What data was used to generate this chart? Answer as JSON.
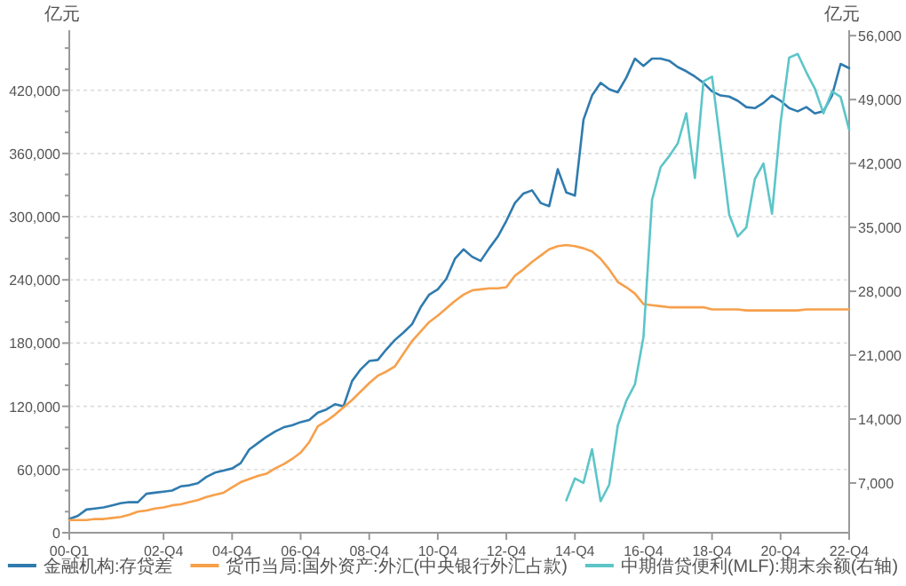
{
  "chart_data": {
    "type": "line",
    "ylabel": "亿元",
    "y2label": "亿元",
    "legend": "bottom",
    "grid": "y",
    "categories": [
      "00-Q1",
      null,
      null,
      null,
      null,
      null,
      null,
      null,
      null,
      null,
      null,
      "02-Q4",
      null,
      null,
      null,
      null,
      null,
      null,
      null,
      "04-Q4",
      null,
      null,
      null,
      null,
      null,
      null,
      null,
      "06-Q4",
      null,
      null,
      null,
      null,
      null,
      null,
      null,
      "08-Q4",
      null,
      null,
      null,
      null,
      null,
      null,
      null,
      "10-Q4",
      null,
      null,
      null,
      null,
      null,
      null,
      null,
      "12-Q4",
      null,
      null,
      null,
      null,
      null,
      null,
      null,
      "14-Q4",
      null,
      null,
      null,
      null,
      null,
      null,
      null,
      "16-Q4",
      null,
      null,
      null,
      null,
      null,
      null,
      null,
      "18-Q4",
      null,
      null,
      null,
      null,
      null,
      null,
      null,
      "20-Q4",
      null,
      null,
      null,
      null,
      null,
      null,
      null,
      "22-Q4"
    ],
    "ylim": [
      0,
      477000
    ],
    "yticks": [
      0,
      {
        "value": 20000,
        "label": null
      },
      {
        "value": 40000,
        "label": null
      },
      {
        "value": 60000,
        "label": "60,000"
      },
      {
        "value": 80000,
        "label": null
      },
      {
        "value": 100000,
        "label": null
      },
      {
        "value": 120000,
        "label": "120,000"
      },
      {
        "value": 140000,
        "label": null
      },
      {
        "value": 160000,
        "label": null
      },
      {
        "value": 180000,
        "label": "180,000"
      },
      {
        "value": 200000,
        "label": null
      },
      {
        "value": 220000,
        "label": null
      },
      {
        "value": 240000,
        "label": "240,000"
      },
      {
        "value": 260000,
        "label": null
      },
      {
        "value": 280000,
        "label": null
      },
      {
        "value": 300000,
        "label": "300,000"
      },
      {
        "value": 320000,
        "label": null
      },
      {
        "value": 340000,
        "label": null
      },
      {
        "value": 360000,
        "label": "360,000"
      },
      {
        "value": 380000,
        "label": null
      },
      {
        "value": 400000,
        "label": null
      },
      {
        "value": 420000,
        "label": "420,000"
      },
      {
        "value": 440000,
        "label": null
      },
      {
        "value": 460000,
        "label": null
      }
    ],
    "y2lim": [
      1550,
      56600
    ],
    "y2ticks": [
      {
        "value": 7000,
        "label": "7,000"
      },
      {
        "value": 14000,
        "label": "14,000"
      },
      {
        "value": 21000,
        "label": "21,000"
      },
      {
        "value": 28000,
        "label": "28,000"
      },
      {
        "value": 35000,
        "label": "35,000"
      },
      {
        "value": 42000,
        "label": "42,000"
      },
      {
        "value": 49000,
        "label": "49,000"
      },
      {
        "value": 56000,
        "label": "56,000"
      }
    ],
    "series": [
      {
        "name": "金融机构:存贷差",
        "color": "#2f7bae",
        "values": [
          13000,
          16000,
          22000,
          23000,
          24000,
          26000,
          28000,
          29000,
          29000,
          37000,
          38000,
          39000,
          40000,
          44000,
          45000,
          47000,
          53000,
          57000,
          59000,
          61000,
          66000,
          79000,
          85000,
          91000,
          96000,
          100000,
          102000,
          105000,
          107000,
          114000,
          117000,
          122000,
          120000,
          144000,
          155000,
          163000,
          164000,
          174000,
          183000,
          190000,
          198000,
          214000,
          226000,
          231000,
          241000,
          260000,
          269000,
          262000,
          258000,
          270000,
          281000,
          296000,
          313000,
          322000,
          325000,
          313000,
          310000,
          345000,
          323000,
          320000,
          392000,
          415000,
          427000,
          421000,
          418000,
          432000,
          450000,
          443000,
          450000,
          450000,
          448000,
          442000,
          438000,
          433000,
          427000,
          419000,
          415000,
          414000,
          410000,
          404000,
          403000,
          408000,
          415000,
          410000,
          403000,
          400000,
          404000,
          398000,
          400000,
          415000,
          445000,
          441000
        ]
      },
      {
        "name": "货币当局:国外资产:外汇(中央银行外汇占款)",
        "color": "#f7a04b",
        "values": [
          12000,
          12000,
          12000,
          13000,
          13000,
          14000,
          15000,
          17000,
          20000,
          21000,
          23000,
          24000,
          26000,
          27000,
          29000,
          31000,
          34000,
          36000,
          38000,
          43000,
          48000,
          51000,
          54000,
          56000,
          61000,
          65000,
          70000,
          76000,
          86000,
          101000,
          106000,
          112000,
          119000,
          126000,
          134000,
          142000,
          149000,
          153000,
          158000,
          170000,
          182000,
          191000,
          200000,
          206000,
          213000,
          220000,
          226000,
          230000,
          231000,
          232000,
          232000,
          233000,
          244000,
          250000,
          257000,
          263000,
          269000,
          272000,
          273000,
          272000,
          270000,
          267000,
          260000,
          250000,
          238000,
          233000,
          227000,
          217000,
          216000,
          215000,
          214000,
          214000,
          214000,
          214000,
          214000,
          212000,
          212000,
          212000,
          212000,
          211000,
          211000,
          211000,
          211000,
          211000,
          211000,
          211000,
          212000,
          212000,
          212000,
          212000,
          212000,
          212000
        ]
      },
      {
        "name": "中期借贷便利(MLF):期末余额(右轴)",
        "color": "#5cc5c8",
        "axis": "y2",
        "values": [
          null,
          null,
          null,
          null,
          null,
          null,
          null,
          null,
          null,
          null,
          null,
          null,
          null,
          null,
          null,
          null,
          null,
          null,
          null,
          null,
          null,
          null,
          null,
          null,
          null,
          null,
          null,
          null,
          null,
          null,
          null,
          null,
          null,
          null,
          null,
          null,
          null,
          null,
          null,
          null,
          null,
          null,
          null,
          null,
          null,
          null,
          null,
          null,
          null,
          null,
          null,
          null,
          null,
          null,
          null,
          null,
          null,
          null,
          5100,
          7500,
          7000,
          10700,
          5000,
          6800,
          13300,
          16000,
          17800,
          23000,
          38000,
          41600,
          42800,
          44200,
          47500,
          40400,
          51000,
          51500,
          44000,
          36400,
          34000,
          35000,
          40300,
          42000,
          36500,
          46500,
          53600,
          54000,
          52000,
          50200,
          47500,
          49900,
          49300,
          45700
        ]
      }
    ]
  }
}
